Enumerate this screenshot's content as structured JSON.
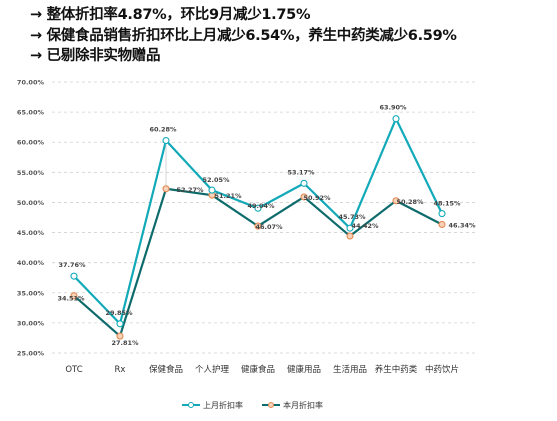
{
  "bullets": [
    "→ 整体折扣率4.87%，环比9月减少1.75%",
    "→ 保健食品销售折扣环比上月减少6.54%，养生中药类减少6.59%",
    "→ 已剔除非实物赠品"
  ],
  "colors": {
    "series1": "#12a9b8",
    "series1_marker_fill": "#ffffff",
    "series2": "#0e6b6b",
    "series2_marker_fill": "#f5d2b8",
    "series2_marker_stroke": "#e28a55",
    "grid": "#d0d0d0",
    "axis_text": "#555555"
  },
  "chart_data": {
    "type": "line",
    "categories": [
      "OTC",
      "Rx",
      "保健食品",
      "个人护理",
      "健康食品",
      "健康用品",
      "生活用品",
      "养生中药类",
      "中药饮片"
    ],
    "series": [
      {
        "name": "上月折扣率",
        "values": [
          37.76,
          29.85,
          60.28,
          52.05,
          49.04,
          53.17,
          45.73,
          63.9,
          48.15
        ],
        "labels": [
          "37.76%",
          "29.85%",
          "60.28%",
          "52.05%",
          "49.04%",
          "53.17%",
          "45.73%",
          "63.90%",
          "48.15%"
        ]
      },
      {
        "name": "本月折扣率",
        "values": [
          34.51,
          27.81,
          52.27,
          51.21,
          46.07,
          50.92,
          44.42,
          50.28,
          46.34
        ],
        "labels": [
          "34.51%",
          "27.81%",
          "52.27%",
          "51.21%",
          "46.07%",
          "50.92%",
          "44.42%",
          "50.28%",
          "46.34%"
        ]
      }
    ],
    "yticks": [
      "70.00%",
      "65.00%",
      "60.00%",
      "55.00%",
      "50.00%",
      "45.00%",
      "40.00%",
      "35.00%",
      "30.00%",
      "25.00%"
    ],
    "ylim": [
      25,
      70
    ],
    "grid": true,
    "legend_position": "bottom"
  }
}
